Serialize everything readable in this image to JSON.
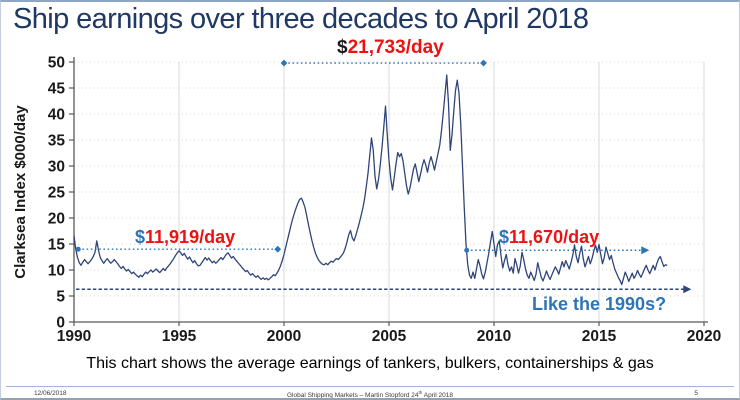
{
  "slide": {
    "title": "Ship earnings over three decades to April 2018",
    "caption": "This chart shows the average earnings of tankers, bulkers, containerships & gas"
  },
  "footer": {
    "date": "12/06/2018",
    "center_pre": "Global Shipping Markets – Martin Stopford 24",
    "center_sup": "th",
    "center_post": " April 2018",
    "page": "5"
  },
  "colors": {
    "title": "#1f3864",
    "series_line": "#2f4579",
    "annotation_blue": "#2e75b6",
    "annotation_red": "#ee1111",
    "grid": "#d9d9d9",
    "axis": "#595959",
    "tick_text": "#1a1a1a"
  },
  "chart_data": {
    "type": "line",
    "title": "Ship earnings over three decades to April 2018",
    "xlabel": "",
    "ylabel": "Clarksea Index $000/day",
    "xlim": [
      1990,
      2020
    ],
    "ylim": [
      0,
      50
    ],
    "x_ticks": [
      1990,
      1995,
      2000,
      2005,
      2010,
      2015,
      2020
    ],
    "y_ticks": [
      0,
      5,
      10,
      15,
      20,
      25,
      30,
      35,
      40,
      45,
      50
    ],
    "grid": "horizontal-dotted and vertical-solid light gray",
    "legend": "none",
    "x_start": 1990,
    "points_per_year": 12,
    "series": [
      {
        "name": "Clarksea Index average earnings ($000/day, monthly, Jan 1990 - Apr 2018)",
        "values": [
          16.6,
          14.0,
          12.4,
          11.4,
          10.9,
          11.5,
          12.0,
          11.6,
          11.2,
          11.6,
          12.0,
          12.6,
          13.4,
          15.6,
          13.8,
          12.4,
          11.8,
          11.3,
          11.8,
          12.2,
          11.7,
          11.3,
          11.6,
          12.0,
          11.6,
          11.2,
          10.7,
          10.3,
          10.7,
          10.2,
          9.8,
          10.1,
          9.7,
          9.3,
          9.6,
          9.2,
          8.9,
          8.6,
          9.0,
          8.7,
          9.2,
          9.6,
          9.3,
          9.7,
          10.0,
          9.6,
          9.9,
          10.2,
          9.8,
          9.5,
          9.9,
          10.3,
          9.9,
          10.4,
          10.8,
          11.2,
          11.7,
          12.2,
          12.8,
          13.3,
          13.7,
          13.3,
          12.8,
          13.2,
          12.6,
          12.1,
          12.5,
          11.9,
          11.4,
          11.8,
          11.2,
          10.8,
          10.9,
          11.4,
          11.9,
          12.4,
          11.9,
          12.3,
          11.8,
          11.4,
          11.7,
          11.3,
          11.6,
          12.0,
          12.4,
          12.0,
          12.5,
          13.0,
          13.3,
          12.8,
          12.3,
          12.6,
          12.1,
          11.7,
          11.3,
          10.9,
          10.5,
          10.1,
          9.7,
          9.9,
          9.4,
          9.0,
          9.3,
          8.9,
          8.6,
          8.9,
          8.5,
          8.2,
          8.5,
          8.2,
          8.4,
          8.1,
          8.4,
          8.7,
          9.1,
          8.9,
          9.4,
          10.0,
          10.8,
          11.8,
          13.0,
          14.4,
          15.8,
          17.2,
          18.6,
          19.9,
          21.0,
          22.0,
          22.9,
          23.6,
          23.8,
          23.0,
          22.0,
          20.4,
          18.7,
          17.1,
          15.6,
          14.3,
          13.2,
          12.4,
          11.8,
          11.4,
          11.1,
          11.0,
          11.3,
          11.0,
          11.4,
          11.7,
          11.5,
          11.9,
          12.2,
          12.0,
          12.4,
          12.8,
          13.3,
          14.2,
          15.4,
          16.8,
          17.6,
          16.2,
          15.6,
          16.6,
          17.8,
          19.0,
          20.4,
          21.8,
          23.6,
          26.0,
          28.6,
          32.0,
          35.4,
          33.0,
          28.0,
          25.6,
          27.4,
          30.2,
          33.6,
          37.4,
          41.5,
          36.0,
          31.0,
          27.6,
          25.4,
          27.8,
          30.4,
          32.6,
          31.8,
          32.4,
          31.0,
          28.6,
          26.2,
          24.6,
          25.8,
          27.6,
          29.4,
          30.4,
          28.8,
          27.0,
          28.4,
          30.0,
          31.2,
          30.2,
          28.8,
          30.6,
          31.8,
          30.6,
          29.2,
          30.8,
          32.4,
          34.0,
          36.8,
          40.2,
          43.8,
          47.5,
          42.0,
          33.0,
          36.0,
          40.5,
          44.5,
          46.5,
          44.0,
          38.0,
          30.0,
          22.0,
          15.0,
          11.0,
          9.0,
          8.4,
          9.6,
          8.4,
          10.2,
          12.0,
          10.8,
          9.2,
          8.3,
          9.6,
          11.4,
          13.2,
          15.4,
          17.4,
          15.0,
          12.6,
          14.9,
          15.6,
          12.8,
          10.4,
          11.8,
          13.0,
          11.0,
          9.8,
          10.6,
          9.4,
          12.2,
          11.0,
          9.4,
          10.8,
          13.4,
          12.0,
          10.2,
          9.0,
          8.4,
          9.6,
          8.8,
          8.0,
          9.2,
          11.4,
          10.0,
          8.6,
          7.9,
          8.8,
          9.8,
          8.9,
          8.2,
          9.0,
          9.8,
          10.6,
          10.0,
          9.2,
          10.4,
          11.6,
          10.6,
          11.8,
          11.0,
          10.2,
          11.4,
          12.8,
          14.8,
          12.6,
          11.4,
          13.2,
          14.6,
          12.2,
          10.6,
          11.6,
          12.6,
          11.2,
          12.2,
          13.6,
          14.8,
          13.4,
          14.9,
          13.0,
          11.2,
          12.4,
          14.4,
          13.2,
          12.0,
          12.8,
          11.4,
          10.2,
          9.4,
          8.6,
          8.0,
          7.2,
          8.4,
          9.6,
          8.8,
          7.8,
          8.6,
          9.4,
          8.4,
          9.0,
          9.9,
          9.2,
          8.6,
          9.4,
          10.2,
          10.9,
          10.0,
          9.3,
          10.1,
          10.9,
          10.0,
          11.2,
          12.1,
          12.6,
          11.6,
          10.7,
          11.0,
          10.9
        ]
      }
    ],
    "annotations": [
      {
        "id": "avg-2000s",
        "currency": "$",
        "amount": "21,733/day",
        "currency_color": "#1a1a1a",
        "amount_color": "#ee1111",
        "x1": 2000.0,
        "x2": 2009.5,
        "y": 49.8,
        "line_color": "#2e75b6",
        "dash": "dotted",
        "start": "diamond",
        "end": "diamond"
      },
      {
        "id": "avg-1990s",
        "currency": "$",
        "amount": "11,919/day",
        "currency_color": "#2e75b6",
        "amount_color": "#ee1111",
        "x1": 1990.2,
        "x2": 1999.7,
        "y": 14.0,
        "line_color": "#2e75b6",
        "dash": "dotted",
        "start": "circle",
        "end": "diamond"
      },
      {
        "id": "avg-2010s",
        "currency": "$",
        "amount": "11,670/day",
        "currency_color": "#2e75b6",
        "amount_color": "#ee1111",
        "x1": 2008.7,
        "x2": 2017.3,
        "y": 13.8,
        "line_color": "#2e75b6",
        "dash": "dotted",
        "start": "circle",
        "end": "arrow"
      },
      {
        "id": "like-1990s",
        "text": "Like the 1990s?",
        "text_color": "#2e75b6",
        "x1": 1990.1,
        "x2": 2019.3,
        "y": 6.3,
        "line_color": "#2f4579",
        "dash": "dashed",
        "start": "none",
        "end": "arrow"
      }
    ]
  }
}
